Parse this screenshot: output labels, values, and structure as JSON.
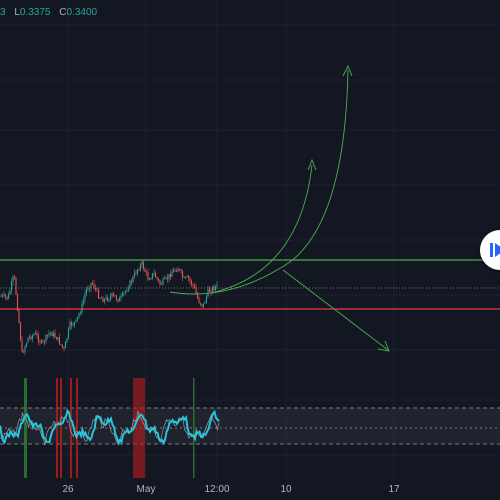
{
  "ohlc": {
    "high_label": "3",
    "low_key": "L",
    "low_value": "0.3375",
    "close_key": "C",
    "close_value": "0.3400"
  },
  "time_axis": {
    "labels": [
      "26",
      "May",
      "12:00",
      "10",
      "17"
    ]
  },
  "colors": {
    "background": "#131722",
    "up": "#26a69a",
    "down": "#ef5350",
    "resistance": "#4caf50",
    "support": "#f23645",
    "projection": "#4caf50",
    "oscillator": "#26c6da",
    "oscillator_shadow": "#b2b5be",
    "highlight_red": "#b71c1c",
    "highlight_green": "#2e7d32"
  },
  "icons": {
    "replay": "play-arrow-icon"
  }
}
